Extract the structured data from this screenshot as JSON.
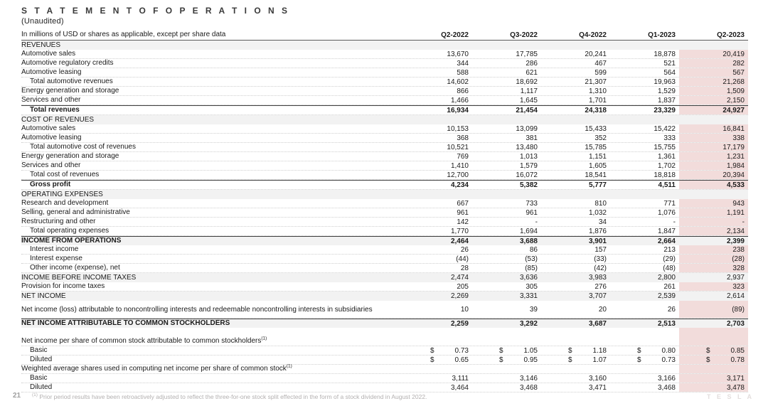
{
  "header": {
    "title": "S T A T E M E N T   O F   O P E R A T I O N S",
    "subtitle": "(Unaudited)"
  },
  "colors": {
    "highlight_pink": "#f2dcdb",
    "row_shade_gray": "#f2f2f2"
  },
  "table": {
    "unit_label": "In millions of USD or shares as applicable, except per share data",
    "columns": [
      "Q2-2022",
      "Q3-2022",
      "Q4-2022",
      "Q1-2023",
      "Q2-2023"
    ],
    "rows": [
      {
        "label": "REVENUES",
        "shaded": true
      },
      {
        "label": "Automotive sales",
        "values": [
          "13,670",
          "17,785",
          "20,241",
          "18,878",
          "20,419"
        ]
      },
      {
        "label": "Automotive regulatory credits",
        "values": [
          "344",
          "286",
          "467",
          "521",
          "282"
        ]
      },
      {
        "label": "Automotive leasing",
        "values": [
          "588",
          "621",
          "599",
          "564",
          "567"
        ]
      },
      {
        "label": "Total automotive revenues",
        "indent": 1,
        "values": [
          "14,602",
          "18,692",
          "21,307",
          "19,963",
          "21,268"
        ]
      },
      {
        "label": "Energy generation and storage",
        "values": [
          "866",
          "1,117",
          "1,310",
          "1,529",
          "1,509"
        ]
      },
      {
        "label": "Services and other",
        "values": [
          "1,466",
          "1,645",
          "1,701",
          "1,837",
          "2,150"
        ]
      },
      {
        "label": "Total revenues",
        "indent": 1,
        "bold": true,
        "topline": true,
        "values": [
          "16,934",
          "21,454",
          "24,318",
          "23,329",
          "24,927"
        ]
      },
      {
        "label": "COST OF REVENUES",
        "shaded": true
      },
      {
        "label": "Automotive sales",
        "values": [
          "10,153",
          "13,099",
          "15,433",
          "15,422",
          "16,841"
        ]
      },
      {
        "label": "Automotive leasing",
        "values": [
          "368",
          "381",
          "352",
          "333",
          "338"
        ]
      },
      {
        "label": "Total automotive cost of revenues",
        "indent": 1,
        "values": [
          "10,521",
          "13,480",
          "15,785",
          "15,755",
          "17,179"
        ]
      },
      {
        "label": "Energy generation and storage",
        "values": [
          "769",
          "1,013",
          "1,151",
          "1,361",
          "1,231"
        ]
      },
      {
        "label": "Services and other",
        "values": [
          "1,410",
          "1,579",
          "1,605",
          "1,702",
          "1,984"
        ]
      },
      {
        "label": "Total cost of revenues",
        "indent": 1,
        "values": [
          "12,700",
          "16,072",
          "18,541",
          "18,818",
          "20,394"
        ]
      },
      {
        "label": "Gross profit",
        "indent": 1,
        "bold": true,
        "topline": true,
        "values": [
          "4,234",
          "5,382",
          "5,777",
          "4,511",
          "4,533"
        ]
      },
      {
        "label": "OPERATING EXPENSES",
        "shaded": true
      },
      {
        "label": "Research and development",
        "values": [
          "667",
          "733",
          "810",
          "771",
          "943"
        ]
      },
      {
        "label": "Selling, general and administrative",
        "values": [
          "961",
          "961",
          "1,032",
          "1,076",
          "1,191"
        ]
      },
      {
        "label": "Restructuring and other",
        "values": [
          "142",
          "-",
          "34",
          "-",
          "-"
        ]
      },
      {
        "label": "Total operating expenses",
        "indent": 1,
        "values": [
          "1,770",
          "1,694",
          "1,876",
          "1,847",
          "2,134"
        ]
      },
      {
        "label": "INCOME FROM OPERATIONS",
        "bold": true,
        "shaded": true,
        "topline": true,
        "values": [
          "2,464",
          "3,688",
          "3,901",
          "2,664",
          "2,399"
        ]
      },
      {
        "label": "Interest income",
        "indent": 1,
        "values": [
          "26",
          "86",
          "157",
          "213",
          "238"
        ]
      },
      {
        "label": "Interest expense",
        "indent": 1,
        "values": [
          "(44)",
          "(53)",
          "(33)",
          "(29)",
          "(28)"
        ]
      },
      {
        "label": "Other income (expense), net",
        "indent": 1,
        "values": [
          "28",
          "(85)",
          "(42)",
          "(48)",
          "328"
        ]
      },
      {
        "label": "INCOME BEFORE INCOME TAXES",
        "shaded": true,
        "values": [
          "2,474",
          "3,636",
          "3,983",
          "2,800",
          "2,937"
        ]
      },
      {
        "label": "Provision for income taxes",
        "values": [
          "205",
          "305",
          "276",
          "261",
          "323"
        ]
      },
      {
        "label": "NET INCOME",
        "shaded": true,
        "values": [
          "2,269",
          "3,331",
          "3,707",
          "2,539",
          "2,614"
        ]
      },
      {
        "label": "Net income (loss) attributable to noncontrolling interests and redeemable noncontrolling interests in subsidiaries",
        "twolines": true,
        "values": [
          "10",
          "39",
          "20",
          "26",
          "(89)"
        ]
      },
      {
        "label": "NET INCOME ATTRIBUTABLE TO COMMON STOCKHOLDERS",
        "bold": true,
        "shaded": true,
        "topline": true,
        "values": [
          "2,259",
          "3,292",
          "3,687",
          "2,513",
          "2,703"
        ]
      },
      {
        "blank": true
      },
      {
        "label": "Net income per share of common stock attributable to common stockholders",
        "sup": "(1)"
      },
      {
        "label": "Basic",
        "indent": 1,
        "dollar": true,
        "values": [
          "0.73",
          "1.05",
          "1.18",
          "0.80",
          "0.85"
        ]
      },
      {
        "label": "Diluted",
        "indent": 1,
        "dollar": true,
        "values": [
          "0.65",
          "0.95",
          "1.07",
          "0.73",
          "0.78"
        ]
      },
      {
        "label": "Weighted average shares used in computing net income per share of common stock",
        "sup": "(1)"
      },
      {
        "label": "Basic",
        "indent": 1,
        "values": [
          "3,111",
          "3,146",
          "3,160",
          "3,166",
          "3,171"
        ]
      },
      {
        "label": "Diluted",
        "indent": 1,
        "values": [
          "3,464",
          "3,468",
          "3,471",
          "3,468",
          "3,478"
        ]
      }
    ]
  },
  "footer": {
    "page_number": "21",
    "footnote_marker": "(1)",
    "footnote_text": "Prior period results have been retroactively adjusted to reflect the three-for-one stock split effected in the form of a stock dividend in August 2022.",
    "logo_text": "T  E  S  L  A"
  }
}
